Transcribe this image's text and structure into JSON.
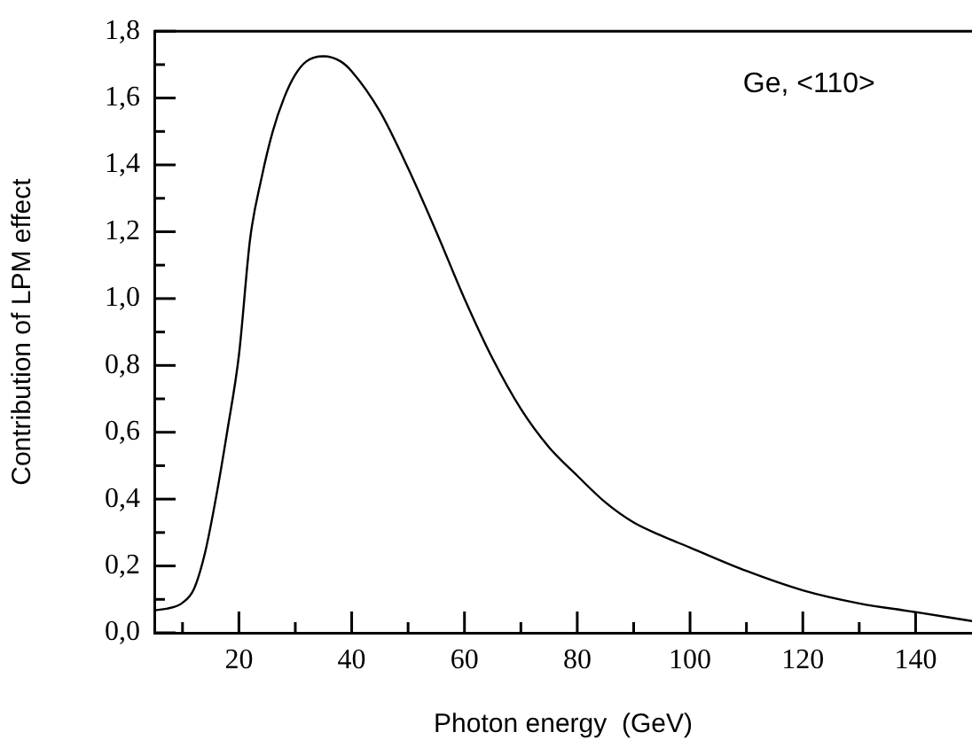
{
  "chart_data": {
    "type": "line",
    "xlabel": "Photon energy  (GeV)",
    "ylabel": "Contribution of LPM effect",
    "annotations": [
      "Ge, <110>"
    ],
    "x": [
      5,
      8,
      10,
      12,
      14,
      16,
      18,
      20,
      22,
      24,
      26,
      28,
      30,
      32,
      35,
      38,
      40,
      45,
      50,
      55,
      60,
      65,
      70,
      75,
      80,
      85,
      90,
      95,
      100,
      110,
      120,
      130,
      140,
      150
    ],
    "series": [
      {
        "color": "#000000",
        "values": [
          0.067,
          0.075,
          0.09,
          0.13,
          0.24,
          0.41,
          0.61,
          0.83,
          1.18,
          1.36,
          1.5,
          1.6,
          1.67,
          1.71,
          1.725,
          1.71,
          1.68,
          1.56,
          1.39,
          1.2,
          1.0,
          0.82,
          0.67,
          0.555,
          0.47,
          0.39,
          0.33,
          0.29,
          0.255,
          0.185,
          0.127,
          0.088,
          0.062,
          0.035
        ]
      }
    ],
    "xlim": [
      5,
      150
    ],
    "ylim": [
      0,
      1.8
    ],
    "xticks": [
      {
        "value": 10,
        "label": null
      },
      20,
      {
        "value": 30,
        "label": null
      },
      40,
      {
        "value": 50,
        "label": null
      },
      60,
      {
        "value": 70,
        "label": null
      },
      80,
      {
        "value": 90,
        "label": null
      },
      100,
      {
        "value": 110,
        "label": null
      },
      120,
      {
        "value": 130,
        "label": null
      },
      140
    ],
    "yticks": [
      {
        "value": 0,
        "label": "0,0"
      },
      {
        "value": 0.1,
        "label": null
      },
      {
        "value": 0.2,
        "label": "0,2"
      },
      {
        "value": 0.3,
        "label": null
      },
      {
        "value": 0.4,
        "label": "0,4"
      },
      {
        "value": 0.5,
        "label": null
      },
      {
        "value": 0.6,
        "label": "0,6"
      },
      {
        "value": 0.7,
        "label": null
      },
      {
        "value": 0.8,
        "label": "0,8"
      },
      {
        "value": 0.9,
        "label": null
      },
      {
        "value": 1.0,
        "label": "1,0"
      },
      {
        "value": 1.1,
        "label": null
      },
      {
        "value": 1.2,
        "label": "1,2"
      },
      {
        "value": 1.3,
        "label": null
      },
      {
        "value": 1.4,
        "label": "1,4"
      },
      {
        "value": 1.5,
        "label": null
      },
      {
        "value": 1.6,
        "label": "1,6"
      },
      {
        "value": 1.7,
        "label": null
      },
      {
        "value": 1.8,
        "label": "1,8"
      }
    ],
    "grid": false,
    "legend": false,
    "marker": "none",
    "line_style": "solid"
  }
}
